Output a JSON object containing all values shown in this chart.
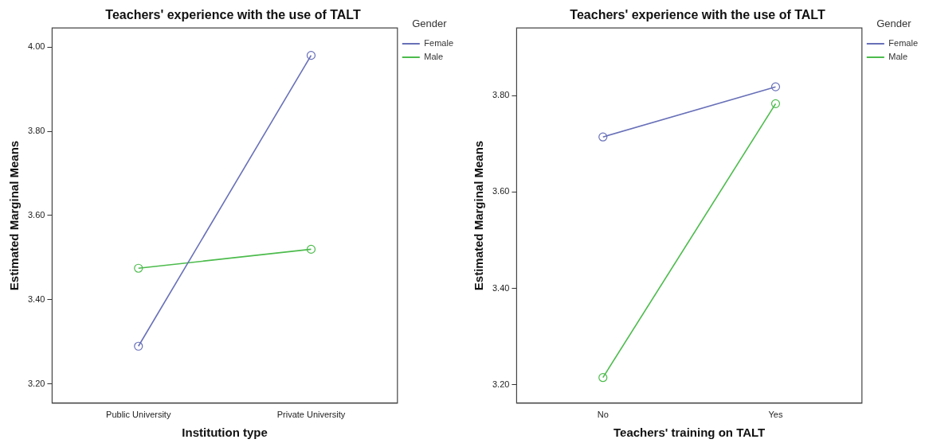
{
  "chart_data": [
    {
      "type": "line",
      "title": "Teachers' experience with the use of TALT",
      "xlabel": "Institution type",
      "ylabel": "Estimated Marginal Means",
      "legend_title": "Gender",
      "categories": [
        "Public University",
        "Private University"
      ],
      "series": [
        {
          "name": "Female",
          "color": "#6870b8",
          "values": [
            3.29,
            3.98
          ]
        },
        {
          "name": "Male",
          "color": "#4cbb4c",
          "values": [
            3.475,
            3.52
          ]
        }
      ],
      "ylim": [
        3.155,
        4.045
      ],
      "yticks": [
        {
          "value": 3.2,
          "label": "3.20"
        },
        {
          "value": 3.4,
          "label": "3.40"
        },
        {
          "value": 3.6,
          "label": "3.60"
        },
        {
          "value": 3.8,
          "label": "3.80"
        },
        {
          "value": 4.0,
          "label": "4.00"
        }
      ],
      "grid": false,
      "legend": "top right",
      "marker": "circle",
      "line_style": "solid"
    },
    {
      "type": "line",
      "title": "Teachers' experience with the use of TALT",
      "xlabel": "Teachers' training on TALT",
      "ylabel": "Estimated Marginal Means",
      "legend_title": "Gender",
      "categories": [
        "No",
        "Yes"
      ],
      "series": [
        {
          "name": "Female",
          "color": "#6870b8",
          "values": [
            3.714,
            3.818
          ]
        },
        {
          "name": "Male",
          "color": "#4cbb4c",
          "values": [
            3.215,
            3.783
          ]
        }
      ],
      "ylim": [
        3.162,
        3.94
      ],
      "yticks": [
        {
          "value": 3.2,
          "label": "3.20"
        },
        {
          "value": 3.4,
          "label": "3.40"
        },
        {
          "value": 3.6,
          "label": "3.60"
        },
        {
          "value": 3.8,
          "label": "3.80"
        }
      ],
      "grid": false,
      "legend": "top right",
      "marker": "circle",
      "line_style": "solid"
    }
  ]
}
